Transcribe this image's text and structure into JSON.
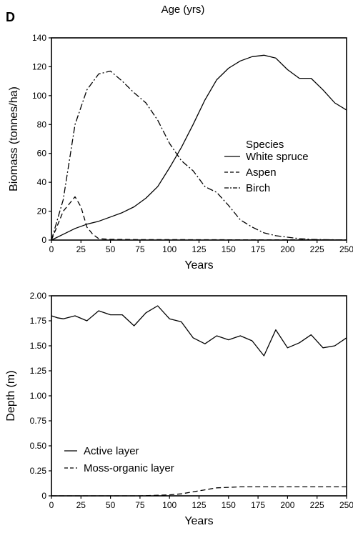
{
  "panel_label": "D",
  "header": "Age (yrs)",
  "chart_data": [
    {
      "type": "line",
      "xlabel": "Years",
      "ylabel": "Biomass (tonnes/ha)",
      "xlim": [
        0,
        250
      ],
      "ylim": [
        0,
        140
      ],
      "x_ticks": [
        "0",
        "25",
        "50",
        "75",
        "100",
        "125",
        "150",
        "175",
        "200",
        "225",
        "250"
      ],
      "y_ticks": [
        "0",
        "20",
        "40",
        "60",
        "80",
        "100",
        "120",
        "140"
      ],
      "legend_title": "Species",
      "legend_position": "center-right",
      "grid": false,
      "series": [
        {
          "name": "White spruce",
          "style": "solid",
          "x": [
            0,
            10,
            20,
            30,
            40,
            50,
            60,
            70,
            80,
            90,
            100,
            110,
            120,
            130,
            140,
            150,
            160,
            170,
            180,
            190,
            200,
            210,
            220,
            230,
            240,
            250
          ],
          "y": [
            0,
            4,
            8,
            11,
            13,
            16,
            19,
            23,
            29,
            37,
            50,
            64,
            80,
            97,
            111,
            119,
            124,
            127,
            128,
            126,
            118,
            112,
            112,
            104,
            95,
            90
          ]
        },
        {
          "name": "Aspen",
          "style": "dashed",
          "x": [
            0,
            10,
            15,
            20,
            25,
            30,
            35,
            40,
            50,
            75,
            100,
            150,
            200,
            250
          ],
          "y": [
            0,
            20,
            25,
            30,
            23,
            9,
            4,
            1,
            0.5,
            0.3,
            0.3,
            0.2,
            0.2,
            0.2
          ]
        },
        {
          "name": "Birch",
          "style": "dashdot",
          "x": [
            0,
            10,
            20,
            30,
            40,
            50,
            60,
            70,
            80,
            90,
            100,
            110,
            120,
            130,
            140,
            150,
            160,
            170,
            180,
            190,
            200,
            210,
            220,
            230,
            240,
            250
          ],
          "y": [
            0,
            28,
            80,
            104,
            115,
            117,
            110,
            102,
            95,
            83,
            67,
            55,
            48,
            37,
            33,
            24,
            14,
            9,
            5,
            3,
            2,
            1,
            0.5,
            0.3,
            0.2,
            0
          ]
        }
      ]
    },
    {
      "type": "line",
      "xlabel": "Years",
      "ylabel": "Depth (m)",
      "xlim": [
        0,
        250
      ],
      "ylim": [
        0,
        2.0
      ],
      "x_ticks": [
        "0",
        "25",
        "50",
        "75",
        "100",
        "125",
        "150",
        "175",
        "200",
        "225",
        "250"
      ],
      "y_ticks": [
        "0",
        "0.25",
        "0.50",
        "0.75",
        "1.00",
        "1.25",
        "1.50",
        "1.75",
        "2.00"
      ],
      "legend_position": "bottom-left",
      "grid": false,
      "series": [
        {
          "name": "Active layer",
          "style": "solid",
          "x": [
            0,
            5,
            10,
            20,
            30,
            40,
            50,
            60,
            70,
            80,
            90,
            100,
            110,
            120,
            130,
            140,
            150,
            160,
            170,
            180,
            190,
            200,
            210,
            220,
            230,
            240,
            250
          ],
          "y": [
            1.8,
            1.78,
            1.77,
            1.8,
            1.75,
            1.85,
            1.81,
            1.81,
            1.7,
            1.83,
            1.9,
            1.77,
            1.74,
            1.58,
            1.52,
            1.6,
            1.56,
            1.6,
            1.55,
            1.4,
            1.66,
            1.48,
            1.53,
            1.61,
            1.48,
            1.5,
            1.58
          ]
        },
        {
          "name": "Moss-organic layer",
          "style": "dashed",
          "x": [
            0,
            25,
            50,
            75,
            100,
            110,
            120,
            130,
            140,
            150,
            160,
            175,
            200,
            225,
            250
          ],
          "y": [
            0,
            0,
            0,
            0,
            0.01,
            0.02,
            0.04,
            0.06,
            0.08,
            0.085,
            0.09,
            0.09,
            0.09,
            0.09,
            0.09
          ]
        }
      ]
    }
  ]
}
